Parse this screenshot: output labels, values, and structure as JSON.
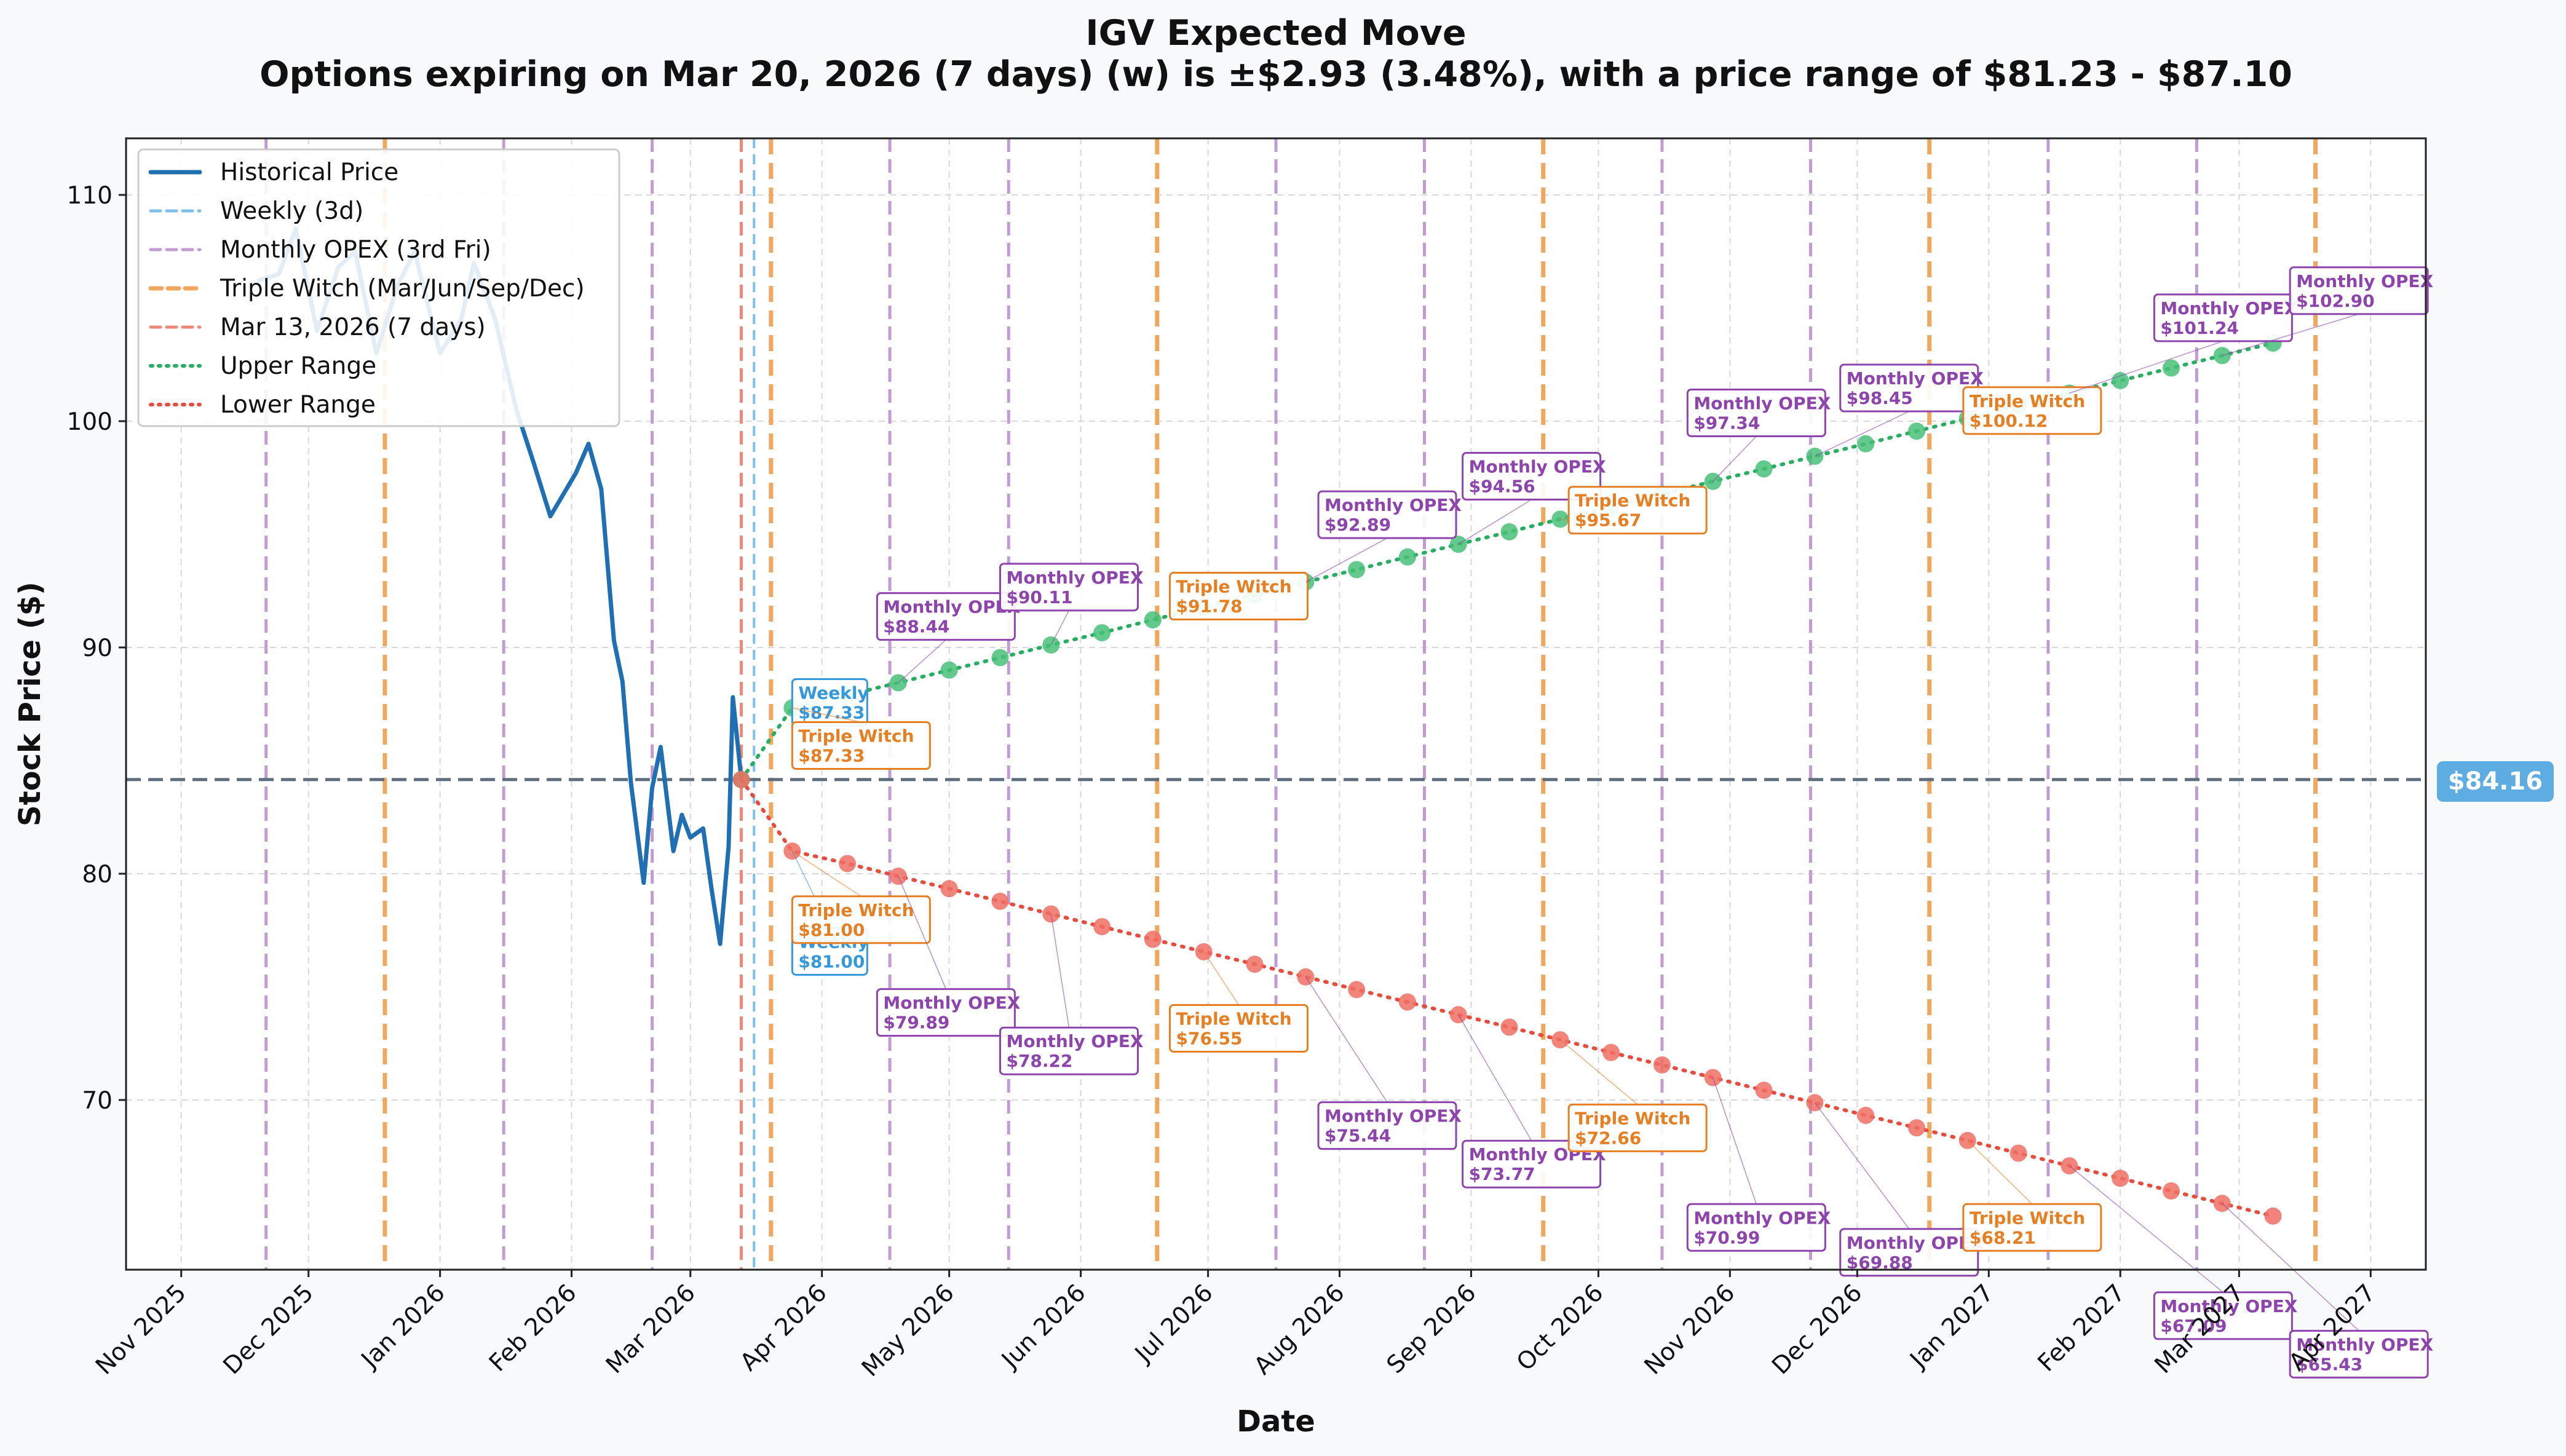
{
  "chart_data": {
    "type": "line",
    "title": "IGV Expected Move",
    "subtitle": "Options expiring on Mar 20, 2026 (7 days) (w) is ±$2.93 (3.48%), with a price range of $81.23 - $87.10",
    "xlabel": "Date",
    "ylabel": "Stock Price ($)",
    "xlim": [
      "2025-10-19",
      "2027-04-14"
    ],
    "ylim": [
      62.5,
      112.5
    ],
    "yticks": [
      70,
      80,
      90,
      100,
      110
    ],
    "xtick_dates": [
      "2025-11-01",
      "2025-12-01",
      "2026-01-01",
      "2026-02-01",
      "2026-03-01",
      "2026-04-01",
      "2026-05-01",
      "2026-06-01",
      "2026-07-01",
      "2026-08-01",
      "2026-09-01",
      "2026-10-01",
      "2026-11-01",
      "2026-12-01",
      "2027-01-01",
      "2027-02-01",
      "2027-03-01",
      "2027-04-01"
    ],
    "xtick_labels": [
      "Nov 2025",
      "Dec 2025",
      "Jan 2026",
      "Feb 2026",
      "Mar 2026",
      "Apr 2026",
      "May 2026",
      "Jun 2026",
      "Jul 2026",
      "Aug 2026",
      "Sep 2026",
      "Oct 2026",
      "Nov 2026",
      "Dec 2026",
      "Jan 2027",
      "Feb 2027",
      "Mar 2027",
      "Apr 2027"
    ],
    "grid": true,
    "legend_position": "top-left",
    "current_price": 84.16,
    "current_price_label": "$84.16",
    "colors": {
      "historical": "#1f6fb2",
      "weekly": "#7fbfea",
      "monthly": "#c39bd3",
      "triple": "#f0a860",
      "today": "#ee8877",
      "upper": "#27ae60",
      "upper_marker": "#48c078",
      "lower": "#e74c3c",
      "lower_marker": "#ef6f64",
      "price_line": "#5d6d7e",
      "price_badge": "#5dade2",
      "ann_weekly": "#3498db",
      "ann_monthly": "#8e44ad",
      "ann_triple": "#e67e22"
    },
    "legend": [
      {
        "label": "Historical Price",
        "style": "solid",
        "color_key": "historical"
      },
      {
        "label": "Weekly (3d)",
        "style": "dashed",
        "color_key": "weekly"
      },
      {
        "label": "Monthly OPEX (3rd Fri)",
        "style": "dashed",
        "color_key": "monthly"
      },
      {
        "label": "Triple Witch (Mar/Jun/Sep/Dec)",
        "style": "dashed-thick",
        "color_key": "triple"
      },
      {
        "label": "Mar 13, 2026 (7 days)",
        "style": "dashed",
        "color_key": "today"
      },
      {
        "label": "Upper Range",
        "style": "dotted",
        "color_key": "upper"
      },
      {
        "label": "Lower Range",
        "style": "dotted",
        "color_key": "lower"
      }
    ],
    "vlines": [
      {
        "date": "2025-11-21",
        "kind": "monthly"
      },
      {
        "date": "2025-12-19",
        "kind": "triple"
      },
      {
        "date": "2026-01-16",
        "kind": "monthly"
      },
      {
        "date": "2026-02-20",
        "kind": "monthly"
      },
      {
        "date": "2026-03-13",
        "kind": "today"
      },
      {
        "date": "2026-03-16",
        "kind": "weekly"
      },
      {
        "date": "2026-03-20",
        "kind": "triple"
      },
      {
        "date": "2026-04-17",
        "kind": "monthly"
      },
      {
        "date": "2026-05-15",
        "kind": "monthly"
      },
      {
        "date": "2026-06-19",
        "kind": "triple"
      },
      {
        "date": "2026-07-17",
        "kind": "monthly"
      },
      {
        "date": "2026-08-21",
        "kind": "monthly"
      },
      {
        "date": "2026-09-18",
        "kind": "triple"
      },
      {
        "date": "2026-10-16",
        "kind": "monthly"
      },
      {
        "date": "2026-11-20",
        "kind": "monthly"
      },
      {
        "date": "2026-12-18",
        "kind": "triple"
      },
      {
        "date": "2027-01-15",
        "kind": "monthly"
      },
      {
        "date": "2027-02-19",
        "kind": "monthly"
      },
      {
        "date": "2027-03-19",
        "kind": "triple"
      }
    ],
    "historical": {
      "name": "Historical Price",
      "x": [
        "2025-11-19",
        "2025-11-24",
        "2025-11-28",
        "2025-12-03",
        "2025-12-08",
        "2025-12-12",
        "2025-12-17",
        "2025-12-22",
        "2025-12-26",
        "2026-01-01",
        "2026-01-06",
        "2026-01-09",
        "2026-01-14",
        "2026-01-19",
        "2026-01-23",
        "2026-01-27",
        "2026-02-02",
        "2026-02-05",
        "2026-02-08",
        "2026-02-11",
        "2026-02-13",
        "2026-02-15",
        "2026-02-18",
        "2026-02-20",
        "2026-02-22",
        "2026-02-25",
        "2026-02-27",
        "2026-03-01",
        "2026-03-04",
        "2026-03-06",
        "2026-03-08",
        "2026-03-10",
        "2026-03-11",
        "2026-03-13"
      ],
      "y": [
        106.2,
        106.5,
        108.5,
        104.0,
        106.8,
        107.5,
        103.0,
        106.0,
        107.5,
        103.0,
        104.5,
        107.0,
        104.5,
        100.5,
        98.2,
        95.8,
        97.7,
        99.0,
        97.0,
        90.3,
        88.5,
        84.0,
        79.6,
        83.8,
        85.6,
        81.0,
        82.6,
        81.6,
        82.0,
        79.3,
        76.9,
        81.2,
        87.8,
        84.16
      ]
    },
    "upper": {
      "name": "Upper Range",
      "x": [
        "2026-03-13",
        "2026-03-25",
        "2026-04-07",
        "2026-04-19",
        "2026-05-01",
        "2026-05-13",
        "2026-05-25",
        "2026-06-06",
        "2026-06-18",
        "2026-06-30",
        "2026-07-12",
        "2026-07-24",
        "2026-08-05",
        "2026-08-17",
        "2026-08-29",
        "2026-09-10",
        "2026-09-22",
        "2026-10-04",
        "2026-10-16",
        "2026-10-28",
        "2026-11-09",
        "2026-11-21",
        "2026-12-03",
        "2026-12-15",
        "2026-12-27",
        "2027-01-08",
        "2027-01-20",
        "2027-02-01",
        "2027-02-13",
        "2027-02-25",
        "2027-03-09"
      ],
      "y": [
        84.16,
        87.33,
        87.9,
        88.44,
        89.0,
        89.55,
        90.11,
        90.65,
        91.22,
        91.78,
        92.33,
        92.89,
        93.44,
        94.0,
        94.56,
        95.11,
        95.67,
        96.22,
        96.78,
        97.34,
        97.89,
        98.45,
        99.0,
        99.56,
        100.12,
        100.68,
        101.24,
        101.79,
        102.35,
        102.9,
        103.45
      ]
    },
    "lower": {
      "name": "Lower Range",
      "x": [
        "2026-03-13",
        "2026-03-25",
        "2026-04-07",
        "2026-04-19",
        "2026-05-01",
        "2026-05-13",
        "2026-05-25",
        "2026-06-06",
        "2026-06-18",
        "2026-06-30",
        "2026-07-12",
        "2026-07-24",
        "2026-08-05",
        "2026-08-17",
        "2026-08-29",
        "2026-09-10",
        "2026-09-22",
        "2026-10-04",
        "2026-10-16",
        "2026-10-28",
        "2026-11-09",
        "2026-11-21",
        "2026-12-03",
        "2026-12-15",
        "2026-12-27",
        "2027-01-08",
        "2027-01-20",
        "2027-02-01",
        "2027-02-13",
        "2027-02-25",
        "2027-03-09"
      ],
      "y": [
        84.16,
        81.0,
        80.45,
        79.89,
        79.34,
        78.78,
        78.22,
        77.66,
        77.1,
        76.55,
        76.0,
        75.44,
        74.88,
        74.33,
        73.77,
        73.22,
        72.66,
        72.1,
        71.55,
        70.99,
        70.43,
        69.88,
        69.32,
        68.77,
        68.21,
        67.65,
        67.09,
        66.54,
        65.98,
        65.43,
        64.87
      ]
    },
    "annotations": [
      {
        "kind": "weekly",
        "title": "Weekly",
        "value": "$87.33",
        "point": [
          "2026-03-25",
          87.33
        ],
        "box": [
          "2026-03-25",
          88.6
        ]
      },
      {
        "kind": "triple",
        "title": "Triple Witch",
        "value": "$87.33",
        "point": [
          "2026-03-25",
          87.33
        ],
        "box": [
          "2026-03-25",
          86.7
        ]
      },
      {
        "kind": "monthly",
        "title": "Monthly OPEX",
        "value": "$88.44",
        "point": [
          "2026-04-19",
          88.44
        ],
        "box": [
          "2026-04-14",
          92.4
        ]
      },
      {
        "kind": "monthly",
        "title": "Monthly OPEX",
        "value": "$90.11",
        "point": [
          "2026-05-25",
          90.11
        ],
        "box": [
          "2026-05-13",
          93.7
        ]
      },
      {
        "kind": "triple",
        "title": "Triple Witch",
        "value": "$91.78",
        "point": [
          "2026-06-30",
          91.78
        ],
        "box": [
          "2026-06-22",
          93.3
        ]
      },
      {
        "kind": "monthly",
        "title": "Monthly OPEX",
        "value": "$92.89",
        "point": [
          "2026-07-24",
          92.89
        ],
        "box": [
          "2026-07-27",
          96.9
        ]
      },
      {
        "kind": "monthly",
        "title": "Monthly OPEX",
        "value": "$94.56",
        "point": [
          "2026-08-29",
          94.56
        ],
        "box": [
          "2026-08-30",
          98.6
        ]
      },
      {
        "kind": "triple",
        "title": "Triple Witch",
        "value": "$95.67",
        "point": [
          "2026-09-22",
          95.67
        ],
        "box": [
          "2026-09-24",
          97.1
        ]
      },
      {
        "kind": "monthly",
        "title": "Monthly OPEX",
        "value": "$97.34",
        "point": [
          "2026-10-28",
          97.34
        ],
        "box": [
          "2026-10-22",
          101.4
        ]
      },
      {
        "kind": "monthly",
        "title": "Monthly OPEX",
        "value": "$98.45",
        "point": [
          "2026-11-21",
          98.45
        ],
        "box": [
          "2026-11-27",
          102.5
        ]
      },
      {
        "kind": "triple",
        "title": "Triple Witch",
        "value": "$100.12",
        "point": [
          "2026-12-27",
          100.12
        ],
        "box": [
          "2026-12-26",
          101.5
        ]
      },
      {
        "kind": "monthly",
        "title": "Monthly OPEX",
        "value": "$101.24",
        "point": [
          "2027-01-20",
          101.24
        ],
        "box": [
          "2027-02-09",
          105.6
        ]
      },
      {
        "kind": "monthly",
        "title": "Monthly OPEX",
        "value": "$102.90",
        "point": [
          "2027-02-25",
          102.9
        ],
        "box": [
          "2027-03-13",
          106.8
        ]
      },
      {
        "kind": "weekly",
        "title": "Weekly",
        "value": "$81.00",
        "point": [
          "2026-03-25",
          81.0
        ],
        "box": [
          "2026-03-25",
          77.6
        ]
      },
      {
        "kind": "triple",
        "title": "Triple Witch",
        "value": "$81.00",
        "point": [
          "2026-03-25",
          81.0
        ],
        "box": [
          "2026-03-25",
          79.0
        ]
      },
      {
        "kind": "monthly",
        "title": "Monthly OPEX",
        "value": "$79.89",
        "point": [
          "2026-04-19",
          79.89
        ],
        "box": [
          "2026-04-14",
          74.9
        ]
      },
      {
        "kind": "monthly",
        "title": "Monthly OPEX",
        "value": "$78.22",
        "point": [
          "2026-05-25",
          78.22
        ],
        "box": [
          "2026-05-13",
          73.2
        ]
      },
      {
        "kind": "triple",
        "title": "Triple Witch",
        "value": "$76.55",
        "point": [
          "2026-06-30",
          76.55
        ],
        "box": [
          "2026-06-22",
          74.2
        ]
      },
      {
        "kind": "monthly",
        "title": "Monthly OPEX",
        "value": "$75.44",
        "point": [
          "2026-07-24",
          75.44
        ],
        "box": [
          "2026-07-27",
          69.9
        ]
      },
      {
        "kind": "monthly",
        "title": "Monthly OPEX",
        "value": "$73.77",
        "point": [
          "2026-08-29",
          73.77
        ],
        "box": [
          "2026-08-30",
          68.2
        ]
      },
      {
        "kind": "triple",
        "title": "Triple Witch",
        "value": "$72.66",
        "point": [
          "2026-09-22",
          72.66
        ],
        "box": [
          "2026-09-24",
          69.8
        ]
      },
      {
        "kind": "monthly",
        "title": "Monthly OPEX",
        "value": "$70.99",
        "point": [
          "2026-10-28",
          70.99
        ],
        "box": [
          "2026-10-22",
          65.4
        ]
      },
      {
        "kind": "monthly",
        "title": "Monthly OPEX",
        "value": "$69.88",
        "point": [
          "2026-11-21",
          69.88
        ],
        "box": [
          "2026-11-27",
          64.3
        ]
      },
      {
        "kind": "triple",
        "title": "Triple Witch",
        "value": "$68.21",
        "point": [
          "2026-12-27",
          68.21
        ],
        "box": [
          "2026-12-26",
          65.4
        ]
      },
      {
        "kind": "monthly",
        "title": "Monthly OPEX",
        "value": "$67.09",
        "point": [
          "2027-01-20",
          67.09
        ],
        "box": [
          "2027-02-09",
          61.5
        ]
      },
      {
        "kind": "monthly",
        "title": "Monthly OPEX",
        "value": "$65.43",
        "point": [
          "2027-02-25",
          65.43
        ],
        "box": [
          "2027-03-13",
          59.8
        ]
      }
    ]
  }
}
